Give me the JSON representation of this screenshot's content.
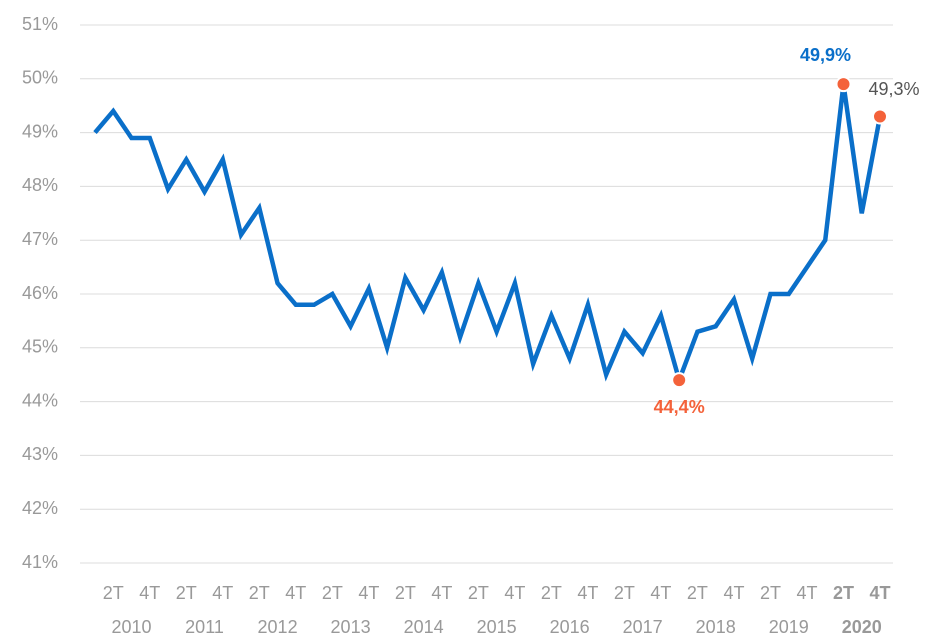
{
  "chart_data": {
    "type": "line",
    "categories": [
      null,
      "2T",
      null,
      "4T",
      null,
      "2T",
      null,
      "4T",
      null,
      "2T",
      null,
      "4T",
      null,
      "2T",
      null,
      "4T",
      null,
      "2T",
      null,
      "4T",
      null,
      "2T",
      null,
      "4T",
      null,
      "2T",
      null,
      "4T",
      null,
      "2T",
      null,
      "4T",
      null,
      "2T",
      null,
      "4T",
      null,
      "2T",
      null,
      "4T",
      null,
      "2T",
      null,
      "4T"
    ],
    "groups": [
      "2010",
      "2011",
      "2012",
      "2013",
      "2014",
      "2015",
      "2016",
      "2017",
      "2018",
      "2019",
      "2020"
    ],
    "series": [
      {
        "color": "#0a6fc9",
        "values": [
          49.0,
          49.4,
          48.9,
          48.9,
          47.95,
          48.5,
          47.9,
          48.5,
          47.1,
          47.6,
          46.2,
          45.8,
          45.8,
          46.0,
          45.4,
          46.1,
          45.0,
          46.3,
          45.7,
          46.4,
          45.2,
          46.2,
          45.3,
          46.2,
          44.7,
          45.6,
          44.8,
          45.8,
          44.5,
          45.3,
          44.9,
          45.6,
          44.4,
          45.3,
          45.4,
          45.9,
          44.8,
          46.0,
          46.0,
          46.5,
          47.0,
          49.9,
          47.5,
          49.3
        ],
        "value_labels": [
          null,
          null,
          null,
          null,
          null,
          null,
          null,
          null,
          null,
          null,
          null,
          null,
          null,
          null,
          null,
          null,
          null,
          null,
          null,
          null,
          null,
          null,
          null,
          null,
          null,
          null,
          null,
          null,
          null,
          null,
          null,
          null,
          "44,4%",
          null,
          null,
          null,
          null,
          null,
          null,
          null,
          null,
          "49,9%",
          null,
          "49,3%"
        ],
        "value_label_colors": [
          null,
          null,
          null,
          null,
          null,
          null,
          null,
          null,
          null,
          null,
          null,
          null,
          null,
          null,
          null,
          null,
          null,
          null,
          null,
          null,
          null,
          null,
          null,
          null,
          null,
          null,
          null,
          null,
          null,
          null,
          null,
          null,
          "#f4623a",
          null,
          null,
          null,
          null,
          null,
          null,
          null,
          null,
          "#0a6fc9",
          null,
          "#555555"
        ],
        "marker_color": "#f4623a"
      }
    ],
    "ylim": [
      41,
      51
    ],
    "yticks": [
      {
        "value": 41,
        "label": "41%"
      },
      {
        "value": 42,
        "label": "42%"
      },
      {
        "value": 43,
        "label": "43%"
      },
      {
        "value": 44,
        "label": "44%"
      },
      {
        "value": 45,
        "label": "45%"
      },
      {
        "value": 46,
        "label": "46%"
      },
      {
        "value": 47,
        "label": "47%"
      },
      {
        "value": 48,
        "label": "48%"
      },
      {
        "value": 49,
        "label": "49%"
      },
      {
        "value": 50,
        "label": "50%"
      },
      {
        "value": 51,
        "label": "51%"
      }
    ],
    "grid": true
  }
}
